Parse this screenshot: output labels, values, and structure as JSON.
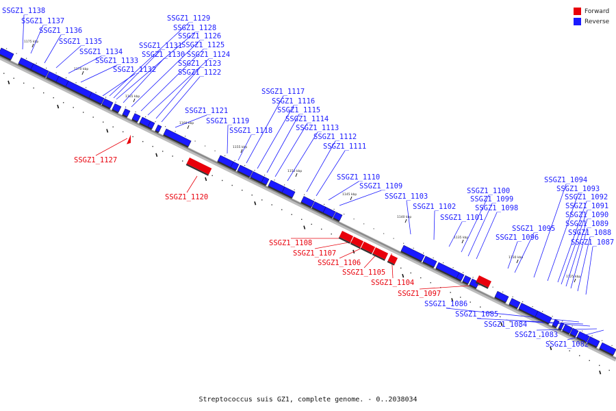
{
  "colors": {
    "forward": "#e8000b",
    "reverse": "#1a1aff",
    "backbone": "#8a8a8a"
  },
  "legend": {
    "forward": "Forward",
    "reverse": "Reverse"
  },
  "caption": "Streptococcus suis GZ1, complete genome. - 0..2038034",
  "ticks": [
    "1175 kbp",
    "1170 kbp",
    "1165 kbp",
    "1160 kbp",
    "1155 kbp",
    "1150 kbp",
    "1145 kbp",
    "1140 kbp",
    "1135 kbp",
    "1130 kbp",
    "1125 kbp"
  ],
  "genes": [
    {
      "name": "SSGZ1_1138",
      "strand": "reverse"
    },
    {
      "name": "SSGZ1_1137",
      "strand": "reverse"
    },
    {
      "name": "SSGZ1_1136",
      "strand": "reverse"
    },
    {
      "name": "SSGZ1_1135",
      "strand": "reverse"
    },
    {
      "name": "SSGZ1_1134",
      "strand": "reverse"
    },
    {
      "name": "SSGZ1_1133",
      "strand": "reverse"
    },
    {
      "name": "SSGZ1_1132",
      "strand": "reverse"
    },
    {
      "name": "SSGZ1_1131",
      "strand": "reverse"
    },
    {
      "name": "SSGZ1_1130",
      "strand": "reverse"
    },
    {
      "name": "SSGZ1_1129",
      "strand": "reverse"
    },
    {
      "name": "SSGZ1_1128",
      "strand": "reverse"
    },
    {
      "name": "SSGZ1_1127",
      "strand": "forward"
    },
    {
      "name": "SSGZ1_1126",
      "strand": "reverse"
    },
    {
      "name": "SSGZ1_1125",
      "strand": "reverse"
    },
    {
      "name": "SSGZ1_1124",
      "strand": "reverse"
    },
    {
      "name": "SSGZ1_1123",
      "strand": "reverse"
    },
    {
      "name": "SSGZ1_1122",
      "strand": "reverse"
    },
    {
      "name": "SSGZ1_1121",
      "strand": "reverse"
    },
    {
      "name": "SSGZ1_1120",
      "strand": "forward"
    },
    {
      "name": "SSGZ1_1119",
      "strand": "reverse"
    },
    {
      "name": "SSGZ1_1118",
      "strand": "reverse"
    },
    {
      "name": "SSGZ1_1117",
      "strand": "reverse"
    },
    {
      "name": "SSGZ1_1116",
      "strand": "reverse"
    },
    {
      "name": "SSGZ1_1115",
      "strand": "reverse"
    },
    {
      "name": "SSGZ1_1114",
      "strand": "reverse"
    },
    {
      "name": "SSGZ1_1113",
      "strand": "reverse"
    },
    {
      "name": "SSGZ1_1112",
      "strand": "reverse"
    },
    {
      "name": "SSGZ1_1111",
      "strand": "reverse"
    },
    {
      "name": "SSGZ1_1110",
      "strand": "reverse"
    },
    {
      "name": "SSGZ1_1109",
      "strand": "reverse"
    },
    {
      "name": "SSGZ1_1108",
      "strand": "forward"
    },
    {
      "name": "SSGZ1_1107",
      "strand": "forward"
    },
    {
      "name": "SSGZ1_1106",
      "strand": "forward"
    },
    {
      "name": "SSGZ1_1105",
      "strand": "forward"
    },
    {
      "name": "SSGZ1_1104",
      "strand": "forward"
    },
    {
      "name": "SSGZ1_1103",
      "strand": "reverse"
    },
    {
      "name": "SSGZ1_1102",
      "strand": "reverse"
    },
    {
      "name": "SSGZ1_1101",
      "strand": "reverse"
    },
    {
      "name": "SSGZ1_1100",
      "strand": "reverse"
    },
    {
      "name": "SSGZ1_1099",
      "strand": "reverse"
    },
    {
      "name": "SSGZ1_1098",
      "strand": "reverse"
    },
    {
      "name": "SSGZ1_1097",
      "strand": "forward"
    },
    {
      "name": "SSGZ1_1096",
      "strand": "reverse"
    },
    {
      "name": "SSGZ1_1095",
      "strand": "reverse"
    },
    {
      "name": "SSGZ1_1094",
      "strand": "reverse"
    },
    {
      "name": "SSGZ1_1093",
      "strand": "reverse"
    },
    {
      "name": "SSGZ1_1092",
      "strand": "reverse"
    },
    {
      "name": "SSGZ1_1091",
      "strand": "reverse"
    },
    {
      "name": "SSGZ1_1090",
      "strand": "reverse"
    },
    {
      "name": "SSGZ1_1089",
      "strand": "reverse"
    },
    {
      "name": "SSGZ1_1088",
      "strand": "reverse"
    },
    {
      "name": "SSGZ1_1087",
      "strand": "reverse"
    },
    {
      "name": "SSGZ1_1086",
      "strand": "reverse"
    },
    {
      "name": "SSGZ1_1085",
      "strand": "reverse"
    },
    {
      "name": "SSGZ1_1084",
      "strand": "reverse"
    },
    {
      "name": "SSGZ1_1083",
      "strand": "reverse"
    },
    {
      "name": "SSGZ1_1082",
      "strand": "reverse"
    }
  ]
}
